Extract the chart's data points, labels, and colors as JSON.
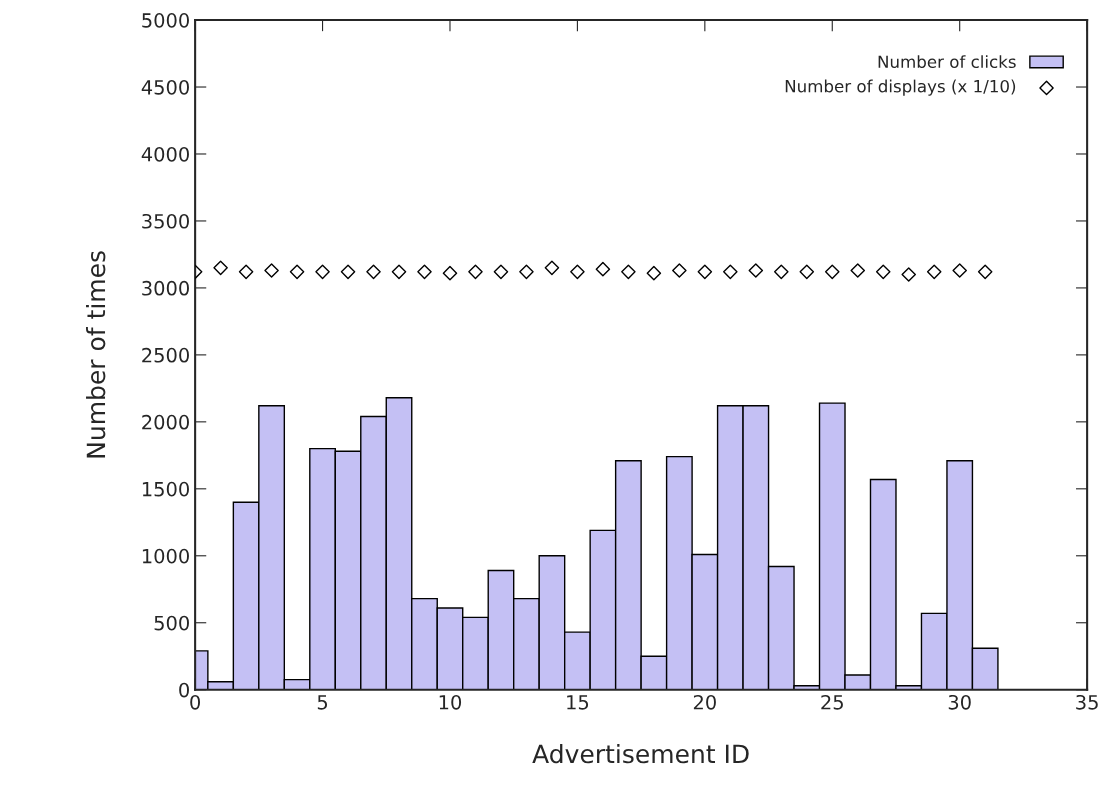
{
  "chart_data": {
    "type": "bar",
    "xlabel": "Advertisement ID",
    "ylabel": "Number of times",
    "x": [
      0,
      1,
      2,
      3,
      4,
      5,
      6,
      7,
      8,
      9,
      10,
      11,
      12,
      13,
      14,
      15,
      16,
      17,
      18,
      19,
      20,
      21,
      22,
      23,
      24,
      25,
      26,
      27,
      28,
      29,
      30,
      31
    ],
    "series": [
      {
        "name": "Number of clicks",
        "color": "#c4c0f4",
        "values": [
          290,
          60,
          1400,
          2120,
          75,
          1800,
          1780,
          2040,
          2180,
          680,
          610,
          540,
          890,
          680,
          1000,
          430,
          1190,
          1710,
          250,
          1740,
          1010,
          2120,
          2120,
          920,
          30,
          2140,
          110,
          1570,
          30,
          570,
          1710,
          310
        ]
      },
      {
        "name": "Number of displays (x 1/10)",
        "type": "scatter",
        "color": "#000000",
        "marker": "diamond",
        "values": [
          3120,
          3150,
          3120,
          3130,
          3120,
          3120,
          3120,
          3120,
          3120,
          3120,
          3110,
          3120,
          3120,
          3120,
          3150,
          3120,
          3140,
          3120,
          3110,
          3130,
          3120,
          3120,
          3130,
          3120,
          3120,
          3120,
          3130,
          3120,
          3100,
          3120,
          3130,
          3120
        ]
      }
    ],
    "xlim": [
      0,
      35
    ],
    "xticks": [
      0,
      5,
      10,
      15,
      20,
      25,
      30,
      35
    ],
    "ylim": [
      0,
      5000
    ],
    "yticks": [
      0,
      500,
      1000,
      1500,
      2000,
      2500,
      3000,
      3500,
      4000,
      4500,
      5000
    ],
    "grid": false,
    "legend": "top right"
  }
}
